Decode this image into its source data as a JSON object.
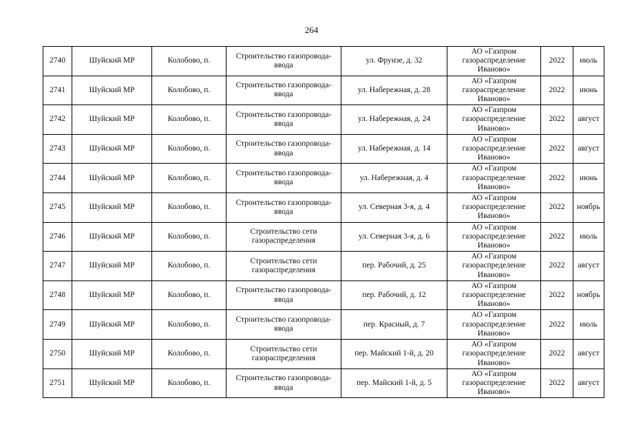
{
  "page": {
    "number": "264"
  },
  "table": {
    "rows": [
      {
        "id": "2740",
        "district": "Шуйский МР",
        "settlement": "Колобово, п.",
        "work": "Строительство газопровода-ввода",
        "address": "ул. Фрунзе, д. 32",
        "org": "АО «Газпром газораспределение Иваново»",
        "year": "2022",
        "month": "июль"
      },
      {
        "id": "2741",
        "district": "Шуйский МР",
        "settlement": "Колобово, п.",
        "work": "Строительство газопровода-ввода",
        "address": "ул. Набережная, д. 28",
        "org": "АО «Газпром газораспределение Иваново»",
        "year": "2022",
        "month": "июнь"
      },
      {
        "id": "2742",
        "district": "Шуйский МР",
        "settlement": "Колобово, п.",
        "work": "Строительство газопровода-ввода",
        "address": "ул. Набережная, д. 24",
        "org": "АО «Газпром газораспределение Иваново»",
        "year": "2022",
        "month": "август"
      },
      {
        "id": "2743",
        "district": "Шуйский МР",
        "settlement": "Колобово, п.",
        "work": "Строительство газопровода-ввода",
        "address": "ул. Набережная, д. 14",
        "org": "АО «Газпром газораспределение Иваново»",
        "year": "2022",
        "month": "август"
      },
      {
        "id": "2744",
        "district": "Шуйский МР",
        "settlement": "Колобово, п.",
        "work": "Строительство газопровода-ввода",
        "address": "ул. Набережная, д. 4",
        "org": "АО «Газпром газораспределение Иваново»",
        "year": "2022",
        "month": "июнь"
      },
      {
        "id": "2745",
        "district": "Шуйский МР",
        "settlement": "Колобово, п.",
        "work": "Строительство газопровода-ввода",
        "address": "ул. Северная 3-я, д. 4",
        "org": "АО «Газпром газораспределение Иваново»",
        "year": "2022",
        "month": "ноябрь"
      },
      {
        "id": "2746",
        "district": "Шуйский МР",
        "settlement": "Колобово, п.",
        "work": "Строительство сети газораспределения",
        "address": "ул. Северная 3-я, д. 6",
        "org": "АО «Газпром газораспределение Иваново»",
        "year": "2022",
        "month": "июль"
      },
      {
        "id": "2747",
        "district": "Шуйский МР",
        "settlement": "Колобово, п.",
        "work": "Строительство сети газораспределения",
        "address": "пер. Рабочий, д. 25",
        "org": "АО «Газпром газораспределение Иваново»",
        "year": "2022",
        "month": "август"
      },
      {
        "id": "2748",
        "district": "Шуйский МР",
        "settlement": "Колобово, п.",
        "work": "Строительство газопровода-ввода",
        "address": "пер. Рабочий, д. 12",
        "org": "АО «Газпром газораспределение Иваново»",
        "year": "2022",
        "month": "ноябрь"
      },
      {
        "id": "2749",
        "district": "Шуйский МР",
        "settlement": "Колобово, п.",
        "work": "Строительство газопровода-ввода",
        "address": "пер. Красный, д. 7",
        "org": "АО «Газпром газораспределение Иваново»",
        "year": "2022",
        "month": "июль"
      },
      {
        "id": "2750",
        "district": "Шуйский МР",
        "settlement": "Колобово, п.",
        "work": "Строительство сети газораспределения",
        "address": "пер. Майский 1-й, д. 20",
        "org": "АО «Газпром газораспределение Иваново»",
        "year": "2022",
        "month": "август"
      },
      {
        "id": "2751",
        "district": "Шуйский МР",
        "settlement": "Колобово, п.",
        "work": "Строительство газопровода-ввода",
        "address": "пер. Майский 1-й, д. 5",
        "org": "АО «Газпром газораспределение Иваново»",
        "year": "2022",
        "month": "август"
      }
    ]
  }
}
